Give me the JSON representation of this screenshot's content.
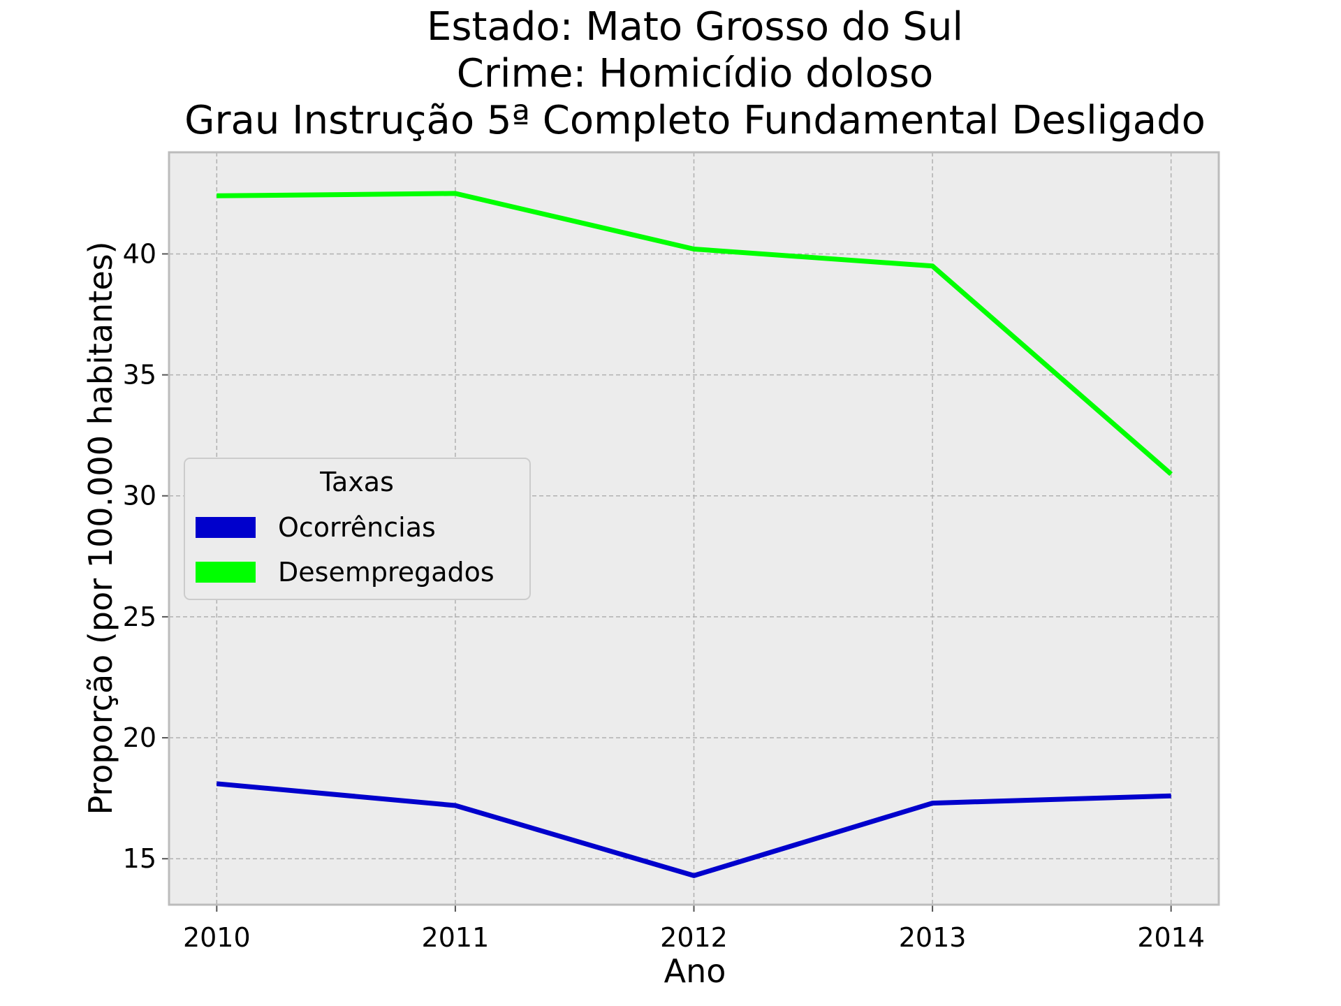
{
  "chart_data": {
    "type": "line",
    "title_lines": [
      "Estado: Mato Grosso do Sul",
      "Crime: Homicídio doloso",
      "Grau Instrução  5ª Completo Fundamental   Desligado"
    ],
    "xlabel": "Ano",
    "ylabel": "Proporção (por 100.000 habitantes)",
    "x": [
      2010,
      2011,
      2012,
      2013,
      2014
    ],
    "xlim": [
      2009.8,
      2014.2
    ],
    "ylim": [
      13.1,
      44.2
    ],
    "yticks": [
      15,
      20,
      25,
      30,
      35,
      40
    ],
    "grid": true,
    "legend": {
      "title": "Taxas",
      "placement": "center-left"
    },
    "series": [
      {
        "name": "Ocorrências",
        "color": "#0000cc",
        "values": [
          18.1,
          17.2,
          14.3,
          17.3,
          17.6
        ]
      },
      {
        "name": "Desempregados",
        "color": "#00ff00",
        "values": [
          42.4,
          42.5,
          40.2,
          39.5,
          30.9
        ]
      }
    ]
  },
  "colors": {
    "plot_background": "#ececec",
    "grid": "#b0b0b0",
    "spine": "#bcbcbc"
  }
}
